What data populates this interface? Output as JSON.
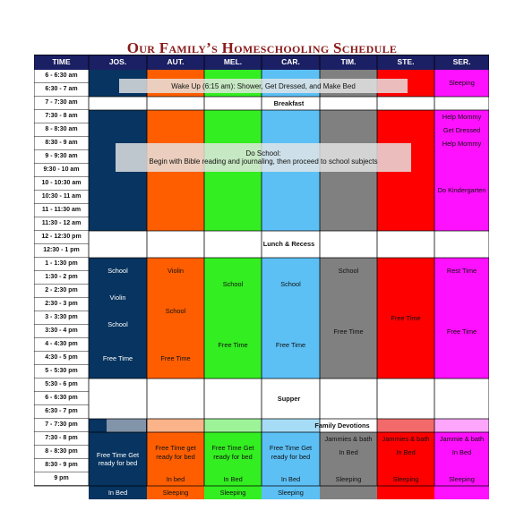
{
  "title": "Our Family’s Homeschooling Schedule",
  "headers": [
    "TIME",
    "JOS.",
    "AUT.",
    "MEL.",
    "CAR.",
    "TIM.",
    "STE.",
    "SER."
  ],
  "times": [
    "6 - 6:30 am",
    "6:30 - 7 am",
    "7 - 7:30 am",
    "7:30 - 8 am",
    "8 - 8:30 am",
    "8:30 - 9 am",
    "9 - 9:30 am",
    "9:30 - 10 am",
    "10 - 10:30 am",
    "10:30 - 11 am",
    "11 - 11:30 am",
    "11:30 - 12 am",
    "12 - 12:30 pm",
    "12:30 - 1 pm",
    "1 - 1:30 pm",
    "1:30 - 2 pm",
    "2 - 2:30 pm",
    "2:30 - 3 pm",
    "3 - 3:30 pm",
    "3:30 - 4 pm",
    "4 - 4:30 pm",
    "4:30 - 5 pm",
    "5 - 5:30 pm",
    "5:30 - 6 pm",
    "6 - 6:30 pm",
    "6:30 - 7 pm",
    "7 - 7:30 pm",
    "7:30 - 8 pm",
    "8 - 8:30 pm",
    "8:30 - 9 pm",
    "9 pm"
  ],
  "colors": {
    "header": "#1b1f63",
    "jos": "#073460",
    "aut": "#fe5e00",
    "mel": "#33ee20",
    "car": "#5cc0f5",
    "tim": "#808080",
    "ste": "#fe0000",
    "ser": "#fe11fe",
    "jos_light": "#8294a9",
    "aut_light": "#fbb38a",
    "mel_light": "#9df498",
    "car_light": "#a7dcf6",
    "ste_light": "#f26a6a",
    "ser_light": "#fda6fc",
    "title": "#8b1a1a"
  },
  "labels": {
    "wake_up": "Wake Up (6:15 am): Shower, Get Dressed, and Make Bed",
    "breakfast": "Breakfast",
    "do_school_title": "Do School:",
    "do_school_desc": "Begin with Bible reading and journaling, then proceed to school subjects",
    "lunch": "Lunch & Recess",
    "supper": "Supper",
    "family_devotions": "Family Devotions",
    "sleeping": "Sleeping",
    "help_mommy": "Help Mommy",
    "get_dressed": "Get Dressed",
    "do_kindergarten": "Do Kindergarten",
    "school": "School",
    "violin": "Violin",
    "free_time": "Free Time",
    "rest_time": "Rest Time",
    "jammies_bath": "Jammies & bath",
    "jammie_bath": "Jammie & bath",
    "in_bed": "In Bed",
    "in_bed_lower": "In bed",
    "free_time_ready": "Free Time Get ready for bed",
    "free_time_ready_lower": "Free Time get ready for bed"
  }
}
